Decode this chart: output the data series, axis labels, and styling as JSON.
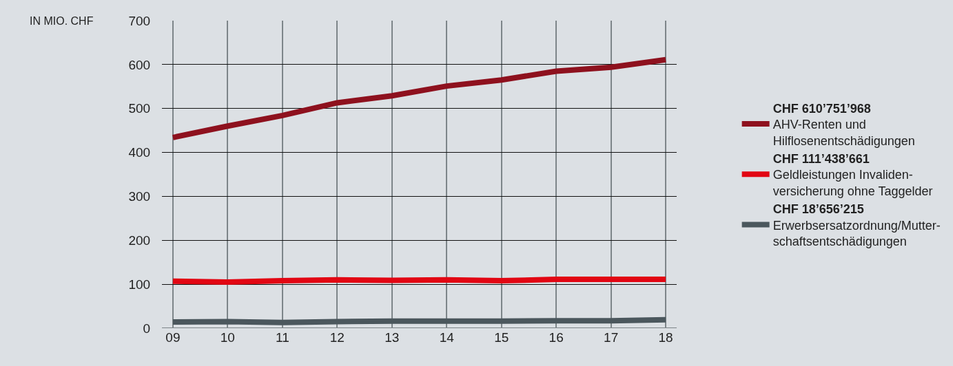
{
  "chart_data": {
    "type": "line",
    "ylabel": "IN MIO. CHF",
    "categories": [
      "09",
      "10",
      "11",
      "12",
      "13",
      "14",
      "15",
      "16",
      "17",
      "18"
    ],
    "series": [
      {
        "name": "CHF 610’751’968\nAHV-Renten und\nHilflosenentschädigungen",
        "color": "#8e111e",
        "values": [
          434,
          460,
          484,
          513,
          529,
          551,
          565,
          585,
          594,
          611
        ]
      },
      {
        "name": "CHF 111’438’661\nGeldleistungen Invaliden-\nversicherung ohne Taggelder",
        "color": "#e20613",
        "values": [
          107,
          105,
          108,
          110,
          109,
          110,
          108,
          111,
          111,
          111
        ]
      },
      {
        "name": "CHF 18’656’215\nErwerbsersatzordnung/Mutter-\nschaftsentschädigungen",
        "color": "#4b575d",
        "values": [
          14,
          15,
          13,
          15,
          16,
          16,
          16,
          17,
          17,
          19
        ]
      }
    ],
    "ylim": [
      0,
      700
    ],
    "yticks": [
      0,
      100,
      200,
      300,
      400,
      500,
      600,
      700
    ],
    "grid": true,
    "legend": "right",
    "marker": "none",
    "line_style": "solid"
  }
}
